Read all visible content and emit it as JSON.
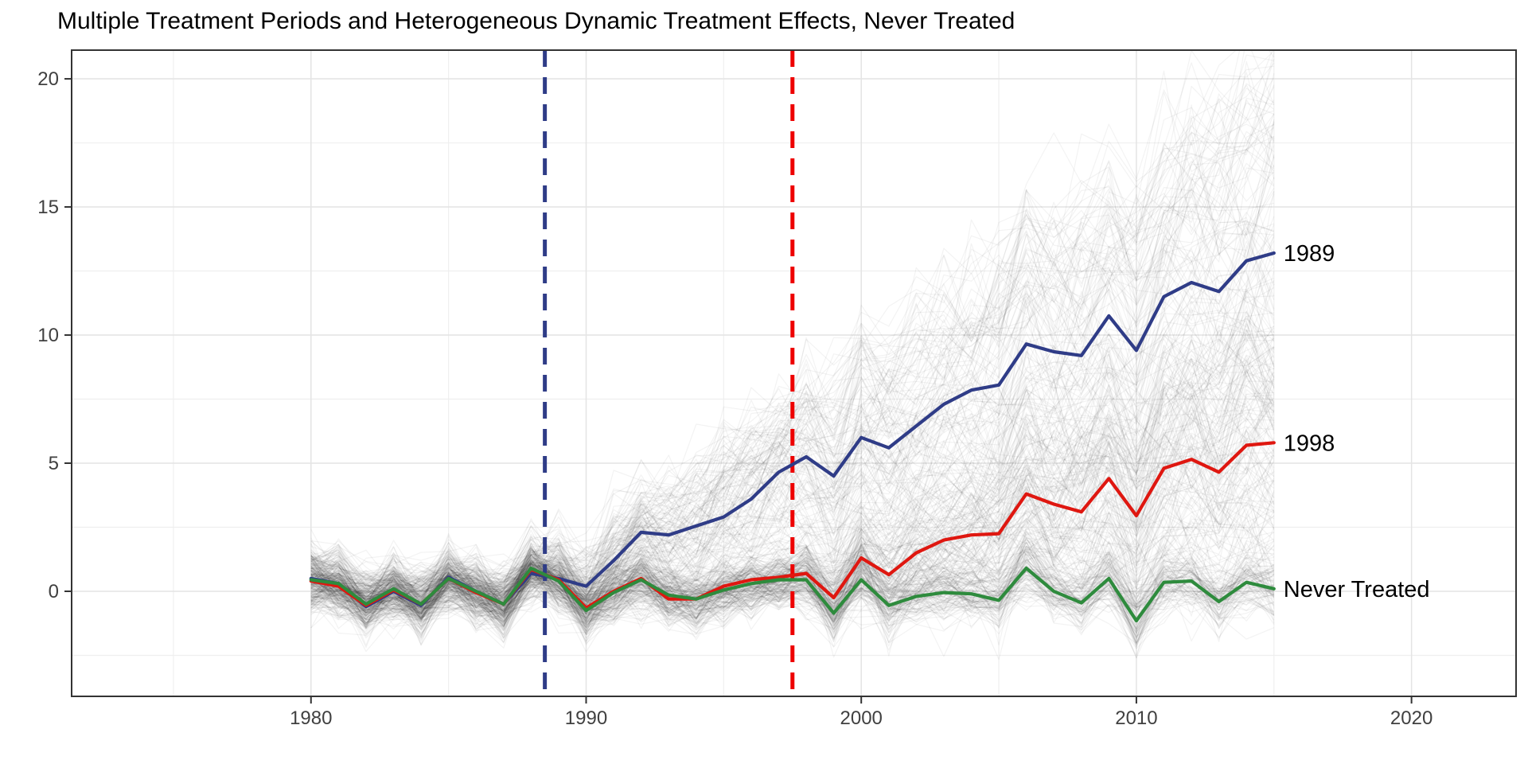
{
  "title": "Multiple Treatment Periods and Heterogeneous Dynamic Treatment Effects, Never Treated",
  "colors": {
    "cohort_1989": "#2f3c87",
    "cohort_1998": "#df1710",
    "never_treated": "#2e8b3d",
    "vline_1989": "#2f3c87",
    "vline_1998": "#ee0000",
    "grid_major": "#e4e4e4",
    "grid_minor": "#efefef",
    "panel_border": "#333333",
    "tick_mark": "#333333",
    "tick_text": "#404040",
    "annotation_text": "#000000",
    "background_line": "rgba(15,15,15,0.05)"
  },
  "chart_data": {
    "type": "line",
    "title": "Multiple Treatment Periods and Heterogeneous Dynamic Treatment Effects, Never Treated",
    "xlabel": "",
    "ylabel": "",
    "x": [
      1980,
      1981,
      1982,
      1983,
      1984,
      1985,
      1986,
      1987,
      1988,
      1989,
      1990,
      1991,
      1992,
      1993,
      1994,
      1995,
      1996,
      1997,
      1998,
      1999,
      2000,
      2001,
      2002,
      2003,
      2004,
      2005,
      2006,
      2007,
      2008,
      2009,
      2010,
      2011,
      2012,
      2013,
      2014,
      2015
    ],
    "series": [
      {
        "name": "1989",
        "label": "1989",
        "color": "#2f3c87",
        "values": [
          0.5,
          0.3,
          -0.6,
          0.0,
          -0.55,
          0.55,
          0.0,
          -0.5,
          0.7,
          0.5,
          0.2,
          1.2,
          2.3,
          2.2,
          2.55,
          2.9,
          3.6,
          4.65,
          5.25,
          4.5,
          6.0,
          5.6,
          6.45,
          7.3,
          7.85,
          8.05,
          9.65,
          9.35,
          9.2,
          10.75,
          9.4,
          11.5,
          12.05,
          11.7,
          12.9,
          13.2
        ]
      },
      {
        "name": "1998",
        "label": "1998",
        "color": "#df1710",
        "values": [
          0.4,
          0.2,
          -0.55,
          0.05,
          -0.5,
          0.5,
          -0.05,
          -0.5,
          0.85,
          0.45,
          -0.65,
          0.0,
          0.5,
          -0.3,
          -0.3,
          0.2,
          0.45,
          0.55,
          0.7,
          -0.25,
          1.3,
          0.65,
          1.5,
          2.0,
          2.2,
          2.25,
          3.8,
          3.4,
          3.1,
          4.4,
          2.95,
          4.8,
          5.15,
          4.65,
          5.7,
          5.8
        ]
      },
      {
        "name": "Never Treated",
        "label": "Never Treated",
        "color": "#2e8b3d",
        "values": [
          0.45,
          0.3,
          -0.5,
          0.1,
          -0.5,
          0.5,
          0.0,
          -0.5,
          0.9,
          0.4,
          -0.75,
          -0.05,
          0.45,
          -0.15,
          -0.3,
          0.05,
          0.3,
          0.45,
          0.45,
          -0.85,
          0.45,
          -0.55,
          -0.2,
          -0.05,
          -0.1,
          -0.35,
          0.9,
          0.0,
          -0.45,
          0.5,
          -1.15,
          0.35,
          0.4,
          -0.4,
          0.35,
          0.1
        ]
      }
    ],
    "vlines": [
      {
        "x": 1988.5,
        "color": "#2f3c87",
        "style": "dashed"
      },
      {
        "x": 1997.5,
        "color": "#ee0000",
        "style": "dashed"
      }
    ],
    "xlim": [
      1971.3,
      2023.8
    ],
    "ylim": [
      -4.1,
      21.12
    ],
    "x_ticks": [
      1980,
      1990,
      2000,
      2010,
      2020
    ],
    "x_tick_labels": [
      "1980",
      "1990",
      "2000",
      "2010",
      "2020"
    ],
    "y_ticks": [
      0,
      5,
      10,
      15,
      20
    ],
    "y_tick_labels": [
      "0",
      "5",
      "10",
      "15",
      "20"
    ],
    "x_minor_grid": [
      1975,
      1985,
      1995,
      2005,
      2015
    ],
    "y_minor_grid": [
      -2.5,
      2.5,
      7.5,
      12.5,
      17.5
    ],
    "grid": true,
    "legend_position": "none",
    "annotations": [
      {
        "text": "1989",
        "x": 2015,
        "y": 13.2,
        "anchor": "start"
      },
      {
        "text": "1998",
        "x": 2015,
        "y": 5.8,
        "anchor": "start"
      },
      {
        "text": "Never Treated",
        "x": 2015,
        "y": 0.1,
        "anchor": "start"
      }
    ],
    "background_lines": {
      "description": "simulated unit-level outcome paths (spaghetti), light gray, sharing common year shocks; treated cohorts fan upward after 1989 and 1998",
      "count": 340,
      "x_start": 1980,
      "x_end": 2015,
      "opacity": 0.05,
      "seed": 12345,
      "share_1989": 0.38,
      "share_1998": 0.32,
      "share_never": 0.3
    }
  }
}
